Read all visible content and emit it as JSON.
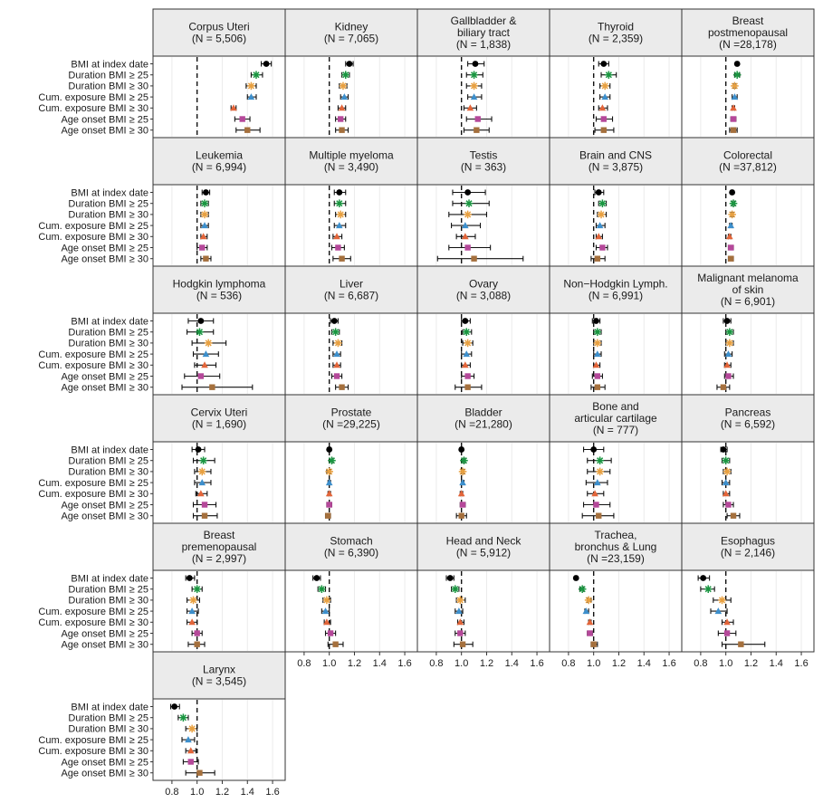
{
  "chart_data": {
    "type": "forest",
    "layout": "5 columns, 6 rows of facets",
    "x_ticks": [
      0.8,
      1.0,
      1.2,
      1.4,
      1.6
    ],
    "x_tick_labels": [
      "0.8",
      "1.0",
      "1.2",
      "1.4",
      "1.6"
    ],
    "xlim": [
      0.7,
      1.65
    ],
    "reference_line": 1.0,
    "grid": true,
    "row_labels": [
      "BMI at index date",
      "Duration BMI ≥ 25",
      "Duration BMI ≥ 30",
      "Cum. exposure BMI ≥ 25",
      "Cum. exposure BMI ≥ 30",
      "Age onset BMI ≥ 25",
      "Age onset BMI ≥ 30"
    ],
    "marker_styles": [
      {
        "shape": "circle",
        "color": "#000000"
      },
      {
        "shape": "asterisk",
        "color": "#1a9641"
      },
      {
        "shape": "asterisk",
        "color": "#e8a040"
      },
      {
        "shape": "triangle",
        "color": "#3d8fcc"
      },
      {
        "shape": "triangle",
        "color": "#e2653a"
      },
      {
        "shape": "square",
        "color": "#b5489a"
      },
      {
        "shape": "square",
        "color": "#a5703d"
      }
    ],
    "panels": [
      {
        "title": [
          "Corpus Uteri",
          "(N = 5,506)"
        ],
        "est": [
          1.55,
          1.47,
          1.43,
          1.43,
          1.29,
          1.36,
          1.4
        ],
        "lo": [
          1.51,
          1.43,
          1.39,
          1.4,
          1.27,
          1.3,
          1.31
        ],
        "hi": [
          1.59,
          1.52,
          1.47,
          1.47,
          1.31,
          1.42,
          1.5
        ]
      },
      {
        "title": [
          "Kidney",
          "(N = 7,065)"
        ],
        "est": [
          1.16,
          1.13,
          1.11,
          1.12,
          1.1,
          1.09,
          1.1
        ],
        "lo": [
          1.13,
          1.1,
          1.08,
          1.09,
          1.07,
          1.05,
          1.05
        ],
        "hi": [
          1.19,
          1.16,
          1.14,
          1.15,
          1.13,
          1.13,
          1.15
        ]
      },
      {
        "title": [
          "Gallbladder &",
          "biliary tract",
          "(N = 1,838)"
        ],
        "est": [
          1.11,
          1.1,
          1.1,
          1.1,
          1.07,
          1.13,
          1.12
        ],
        "lo": [
          1.05,
          1.04,
          1.04,
          1.05,
          1.02,
          1.04,
          1.02
        ],
        "hi": [
          1.18,
          1.17,
          1.16,
          1.16,
          1.12,
          1.24,
          1.22
        ]
      },
      {
        "title": [
          "Thyroid",
          "(N = 2,359)"
        ],
        "est": [
          1.08,
          1.12,
          1.09,
          1.09,
          1.07,
          1.08,
          1.08
        ],
        "lo": [
          1.04,
          1.06,
          1.05,
          1.05,
          1.04,
          1.02,
          1.01
        ],
        "hi": [
          1.12,
          1.18,
          1.13,
          1.13,
          1.11,
          1.15,
          1.16
        ]
      },
      {
        "title": [
          "Breast",
          "postmenopausal",
          "(N =28,178)"
        ],
        "est": [
          1.09,
          1.09,
          1.07,
          1.07,
          1.06,
          1.06,
          1.06
        ],
        "lo": [
          1.08,
          1.07,
          1.06,
          1.05,
          1.05,
          1.04,
          1.03
        ],
        "hi": [
          1.1,
          1.11,
          1.08,
          1.09,
          1.07,
          1.08,
          1.09
        ]
      },
      {
        "title": [
          "Leukemia",
          "(N = 6,994)"
        ],
        "est": [
          1.07,
          1.06,
          1.06,
          1.06,
          1.05,
          1.04,
          1.07
        ],
        "lo": [
          1.04,
          1.03,
          1.03,
          1.03,
          1.03,
          1.0,
          1.03
        ],
        "hi": [
          1.1,
          1.09,
          1.09,
          1.09,
          1.08,
          1.08,
          1.11
        ]
      },
      {
        "title": [
          "Multiple myeloma",
          "(N = 3,490)"
        ],
        "est": [
          1.08,
          1.08,
          1.09,
          1.08,
          1.06,
          1.07,
          1.1
        ],
        "lo": [
          1.04,
          1.04,
          1.05,
          1.04,
          1.03,
          1.02,
          1.03
        ],
        "hi": [
          1.13,
          1.13,
          1.13,
          1.13,
          1.1,
          1.12,
          1.17
        ]
      },
      {
        "title": [
          "Testis",
          "(N =   363)"
        ],
        "est": [
          1.05,
          1.06,
          1.05,
          1.03,
          1.03,
          1.05,
          1.1
        ],
        "lo": [
          0.93,
          0.93,
          0.9,
          0.92,
          0.96,
          0.9,
          0.81
        ],
        "hi": [
          1.19,
          1.22,
          1.2,
          1.15,
          1.11,
          1.23,
          1.49
        ]
      },
      {
        "title": [
          "Brain and CNS",
          "(N = 3,875)"
        ],
        "est": [
          1.04,
          1.07,
          1.06,
          1.05,
          1.04,
          1.07,
          1.03
        ],
        "lo": [
          1.01,
          1.04,
          1.03,
          1.02,
          1.02,
          1.02,
          0.98
        ],
        "hi": [
          1.08,
          1.1,
          1.1,
          1.09,
          1.07,
          1.11,
          1.09
        ]
      },
      {
        "title": [
          "Colorectal",
          "(N =37,812)"
        ],
        "est": [
          1.05,
          1.06,
          1.05,
          1.04,
          1.03,
          1.04,
          1.04
        ],
        "lo": [
          1.04,
          1.05,
          1.04,
          1.03,
          1.02,
          1.02,
          1.02
        ],
        "hi": [
          1.06,
          1.07,
          1.06,
          1.05,
          1.04,
          1.06,
          1.06
        ]
      },
      {
        "title": [
          "Hodgkin lymphoma",
          "(N =   536)"
        ],
        "est": [
          1.03,
          1.02,
          1.09,
          1.07,
          1.06,
          1.03,
          1.12
        ],
        "lo": [
          0.93,
          0.92,
          0.96,
          0.97,
          0.98,
          0.9,
          0.88
        ],
        "hi": [
          1.13,
          1.13,
          1.23,
          1.17,
          1.15,
          1.18,
          1.44
        ]
      },
      {
        "title": [
          "Liver",
          "(N = 6,687)"
        ],
        "est": [
          1.04,
          1.05,
          1.07,
          1.06,
          1.06,
          1.06,
          1.1
        ],
        "lo": [
          1.01,
          1.02,
          1.03,
          1.03,
          1.03,
          1.02,
          1.05
        ],
        "hi": [
          1.07,
          1.08,
          1.1,
          1.09,
          1.09,
          1.1,
          1.15
        ]
      },
      {
        "title": [
          "Ovary",
          "(N = 3,088)"
        ],
        "est": [
          1.03,
          1.04,
          1.05,
          1.04,
          1.03,
          1.05,
          1.05
        ],
        "lo": [
          1.0,
          1.01,
          1.01,
          1.0,
          1.0,
          1.0,
          0.95
        ],
        "hi": [
          1.07,
          1.08,
          1.09,
          1.08,
          1.07,
          1.1,
          1.16
        ]
      },
      {
        "title": [
          "Non−Hodgkin Lymph.",
          "(N = 6,991)"
        ],
        "est": [
          1.02,
          1.03,
          1.03,
          1.03,
          1.02,
          1.03,
          1.03
        ],
        "lo": [
          0.99,
          1.0,
          1.0,
          1.0,
          1.0,
          0.99,
          0.98
        ],
        "hi": [
          1.05,
          1.06,
          1.06,
          1.06,
          1.05,
          1.07,
          1.09
        ]
      },
      {
        "title": [
          "Malignant melanoma",
          "of skin",
          "(N = 6,901)"
        ],
        "est": [
          1.01,
          1.03,
          1.03,
          1.02,
          1.01,
          1.02,
          0.98
        ],
        "lo": [
          0.98,
          1.0,
          1.0,
          0.99,
          0.99,
          0.99,
          0.93
        ],
        "hi": [
          1.04,
          1.06,
          1.06,
          1.05,
          1.04,
          1.06,
          1.03
        ]
      },
      {
        "title": [
          "Cervix Uteri",
          "(N = 1,690)"
        ],
        "est": [
          1.01,
          1.05,
          1.04,
          1.04,
          1.03,
          1.06,
          1.06
        ],
        "lo": [
          0.96,
          0.97,
          0.98,
          0.98,
          0.99,
          0.97,
          0.97
        ],
        "hi": [
          1.06,
          1.14,
          1.11,
          1.11,
          1.08,
          1.15,
          1.16
        ]
      },
      {
        "title": [
          "Prostate",
          "(N =29,225)"
        ],
        "est": [
          1.0,
          1.02,
          1.0,
          1.0,
          1.0,
          1.0,
          0.99
        ],
        "lo": [
          0.99,
          1.0,
          0.98,
          0.99,
          0.99,
          0.98,
          0.97
        ],
        "hi": [
          1.01,
          1.03,
          1.01,
          1.01,
          1.01,
          1.02,
          1.01
        ]
      },
      {
        "title": [
          "Bladder",
          "(N =21,280)"
        ],
        "est": [
          1.0,
          1.02,
          1.01,
          1.01,
          1.0,
          1.01,
          1.0
        ],
        "lo": [
          0.99,
          1.01,
          1.0,
          1.0,
          0.99,
          0.99,
          0.96
        ],
        "hi": [
          1.01,
          1.03,
          1.02,
          1.02,
          1.01,
          1.03,
          1.04
        ]
      },
      {
        "title": [
          "Bone and",
          "articular cartilage",
          "(N =   777)"
        ],
        "est": [
          1.0,
          1.05,
          1.05,
          1.03,
          1.01,
          1.02,
          1.04
        ],
        "lo": [
          0.92,
          0.95,
          0.95,
          0.94,
          0.95,
          0.92,
          0.91
        ],
        "hi": [
          1.08,
          1.14,
          1.13,
          1.11,
          1.08,
          1.13,
          1.16
        ]
      },
      {
        "title": [
          "Pancreas",
          "(N = 6,592)"
        ],
        "est": [
          0.98,
          1.0,
          1.01,
          1.0,
          1.0,
          1.02,
          1.06
        ],
        "lo": [
          0.96,
          0.97,
          0.98,
          0.97,
          0.98,
          0.98,
          1.01
        ],
        "hi": [
          1.01,
          1.03,
          1.04,
          1.03,
          1.03,
          1.06,
          1.11
        ]
      },
      {
        "title": [
          "Breast",
          "premenopausal",
          "(N = 2,997)"
        ],
        "est": [
          0.94,
          1.0,
          0.97,
          0.96,
          0.96,
          1.0,
          1.0
        ],
        "lo": [
          0.91,
          0.96,
          0.92,
          0.92,
          0.92,
          0.96,
          0.93
        ],
        "hi": [
          0.98,
          1.04,
          1.02,
          1.01,
          1.0,
          1.04,
          1.06
        ]
      },
      {
        "title": [
          "Stomach",
          "(N = 6,390)"
        ],
        "est": [
          0.9,
          0.94,
          0.98,
          0.97,
          0.98,
          1.01,
          1.05
        ],
        "lo": [
          0.87,
          0.91,
          0.95,
          0.94,
          0.96,
          0.97,
          0.99
        ],
        "hi": [
          0.93,
          0.97,
          1.01,
          1.0,
          1.01,
          1.05,
          1.11
        ]
      },
      {
        "title": [
          "Head and Neck",
          "(N = 5,912)"
        ],
        "est": [
          0.91,
          0.95,
          0.99,
          0.98,
          0.99,
          0.99,
          1.01
        ],
        "lo": [
          0.88,
          0.92,
          0.96,
          0.95,
          0.97,
          0.95,
          0.94
        ],
        "hi": [
          0.94,
          0.98,
          1.03,
          1.01,
          1.02,
          1.03,
          1.09
        ]
      },
      {
        "title": [
          "Trachea,",
          "bronchus & Lung",
          "(N =23,159)"
        ],
        "est": [
          0.86,
          0.91,
          0.96,
          0.94,
          0.97,
          0.97,
          1.0
        ],
        "lo": [
          0.85,
          0.89,
          0.95,
          0.93,
          0.96,
          0.95,
          0.98
        ],
        "hi": [
          0.87,
          0.92,
          0.98,
          0.96,
          0.98,
          0.99,
          1.03
        ]
      },
      {
        "title": [
          "Esophagus",
          "(N = 2,146)"
        ],
        "est": [
          0.82,
          0.86,
          0.97,
          0.94,
          1.01,
          1.01,
          1.12
        ],
        "lo": [
          0.78,
          0.8,
          0.9,
          0.88,
          0.97,
          0.94,
          0.97
        ],
        "hi": [
          0.87,
          0.91,
          1.04,
          1.01,
          1.06,
          1.08,
          1.31
        ]
      },
      {
        "title": [
          "Larynx",
          "(N = 3,545)"
        ],
        "est": [
          0.82,
          0.89,
          0.96,
          0.93,
          0.95,
          0.95,
          1.02
        ],
        "lo": [
          0.79,
          0.85,
          0.91,
          0.88,
          0.91,
          0.89,
          0.91
        ],
        "hi": [
          0.86,
          0.93,
          1.0,
          0.98,
          0.99,
          1.01,
          1.14
        ]
      }
    ]
  }
}
